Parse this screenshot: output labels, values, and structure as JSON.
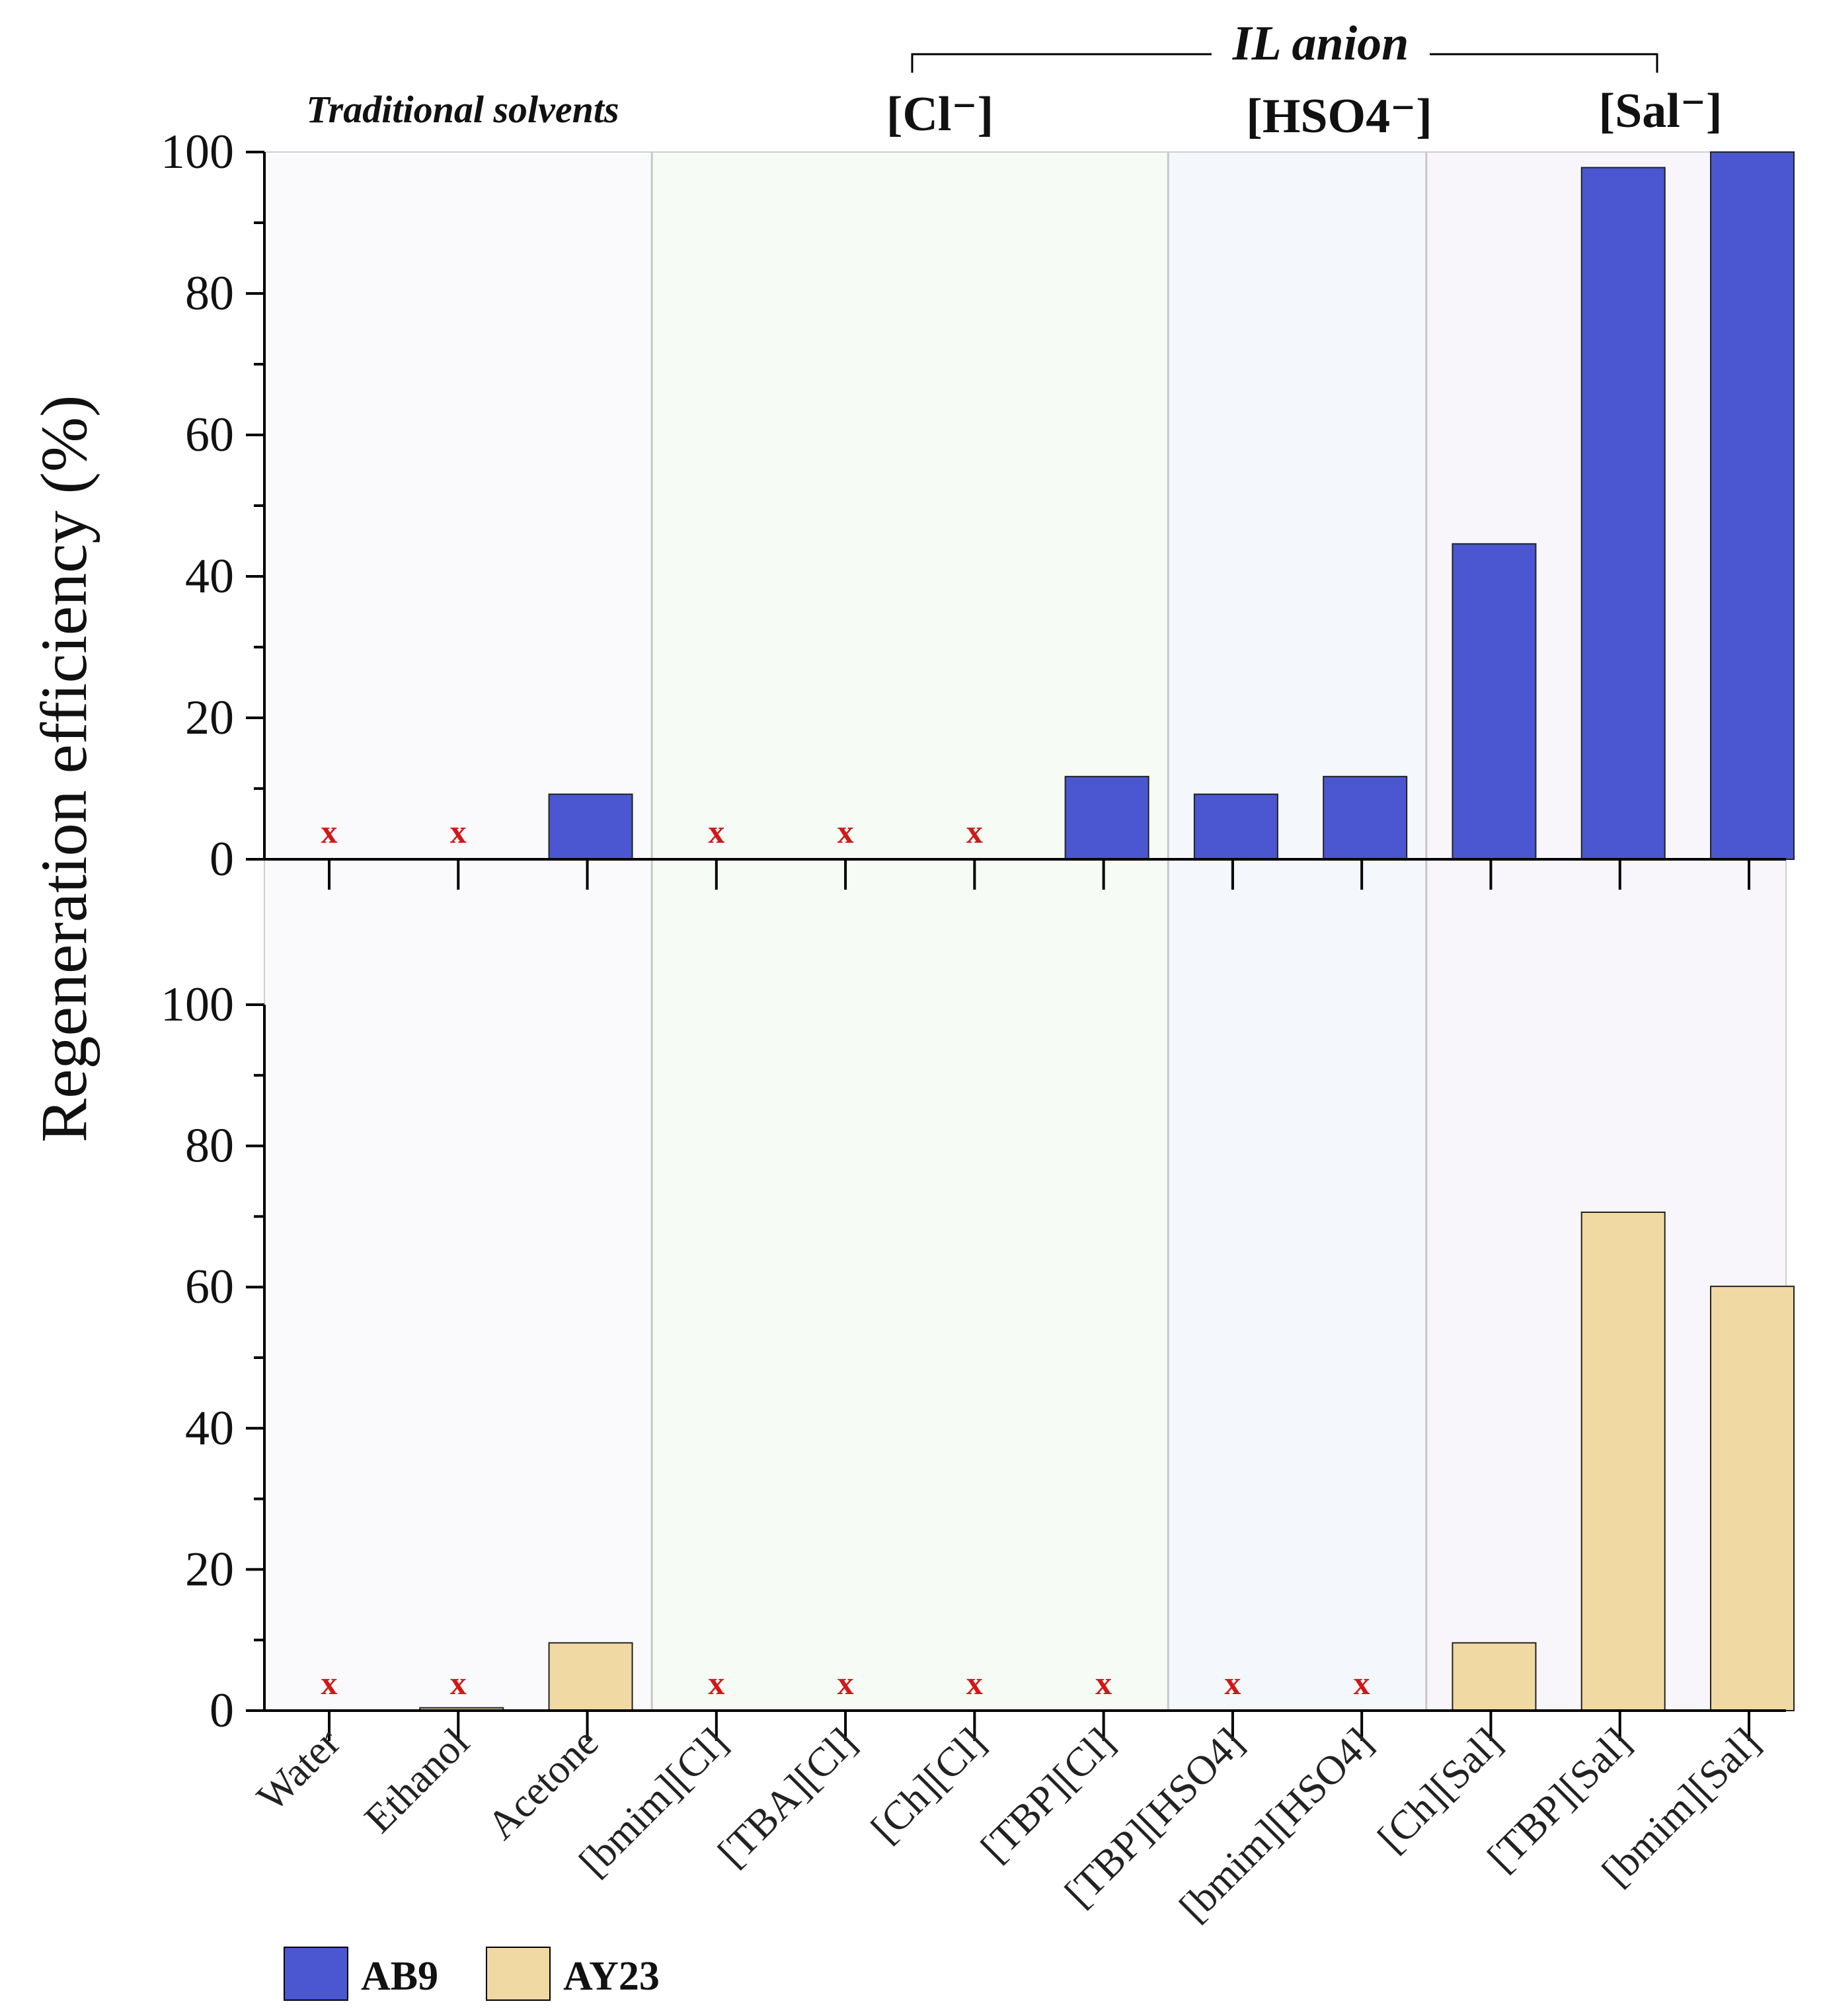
{
  "chart_data": {
    "type": "bar",
    "title": "",
    "xlabel": "",
    "ylabel": "Regeneration efficiency (%)",
    "ylim": [
      0,
      100
    ],
    "y_ticks": [
      "0",
      "20",
      "40",
      "60",
      "80",
      "100"
    ],
    "categories": [
      "Water",
      "Ethanol",
      "Acetone",
      "[bmim][Cl]",
      "[TBA][Cl]",
      "[Ch][Cl]",
      "[TBP][Cl]",
      "[TBP][HSO4]",
      "[bmim][HSO4]",
      "[Ch][Sal]",
      "[TBP][Sal]",
      "[bmim][Sal]"
    ],
    "series": [
      {
        "name": "AB9",
        "color": "#4a57d0",
        "values": [
          0,
          0,
          9.2,
          0,
          0,
          0,
          11.7,
          9.2,
          11.7,
          44.6,
          97.8,
          100
        ],
        "not_regenerated": [
          true,
          true,
          false,
          true,
          true,
          true,
          false,
          false,
          false,
          false,
          false,
          false
        ]
      },
      {
        "name": "AY23",
        "color": "#f1d9a3",
        "values": [
          0,
          0.4,
          9.6,
          0,
          0,
          0,
          0,
          0,
          0,
          9.6,
          70.6,
          60.1
        ],
        "not_regenerated": [
          true,
          true,
          false,
          true,
          true,
          true,
          true,
          true,
          true,
          false,
          false,
          false
        ]
      }
    ],
    "not_regenerated_marker": "x",
    "regions": [
      {
        "label": "Traditional solvents",
        "from": 0,
        "to": 2,
        "color": "#fafafc"
      },
      {
        "label": "[Cl⁻]",
        "from": 3,
        "to": 6,
        "color": "#f6fbf5"
      },
      {
        "label": "[HSO4⁻]",
        "from": 7,
        "to": 8,
        "color": "#f4f8fc"
      },
      {
        "label": "[Sal⁻]",
        "from": 9,
        "to": 11,
        "color": "#f8f6fa"
      }
    ],
    "bracket_title": "IL anion",
    "legend_position": "bottom-left"
  }
}
